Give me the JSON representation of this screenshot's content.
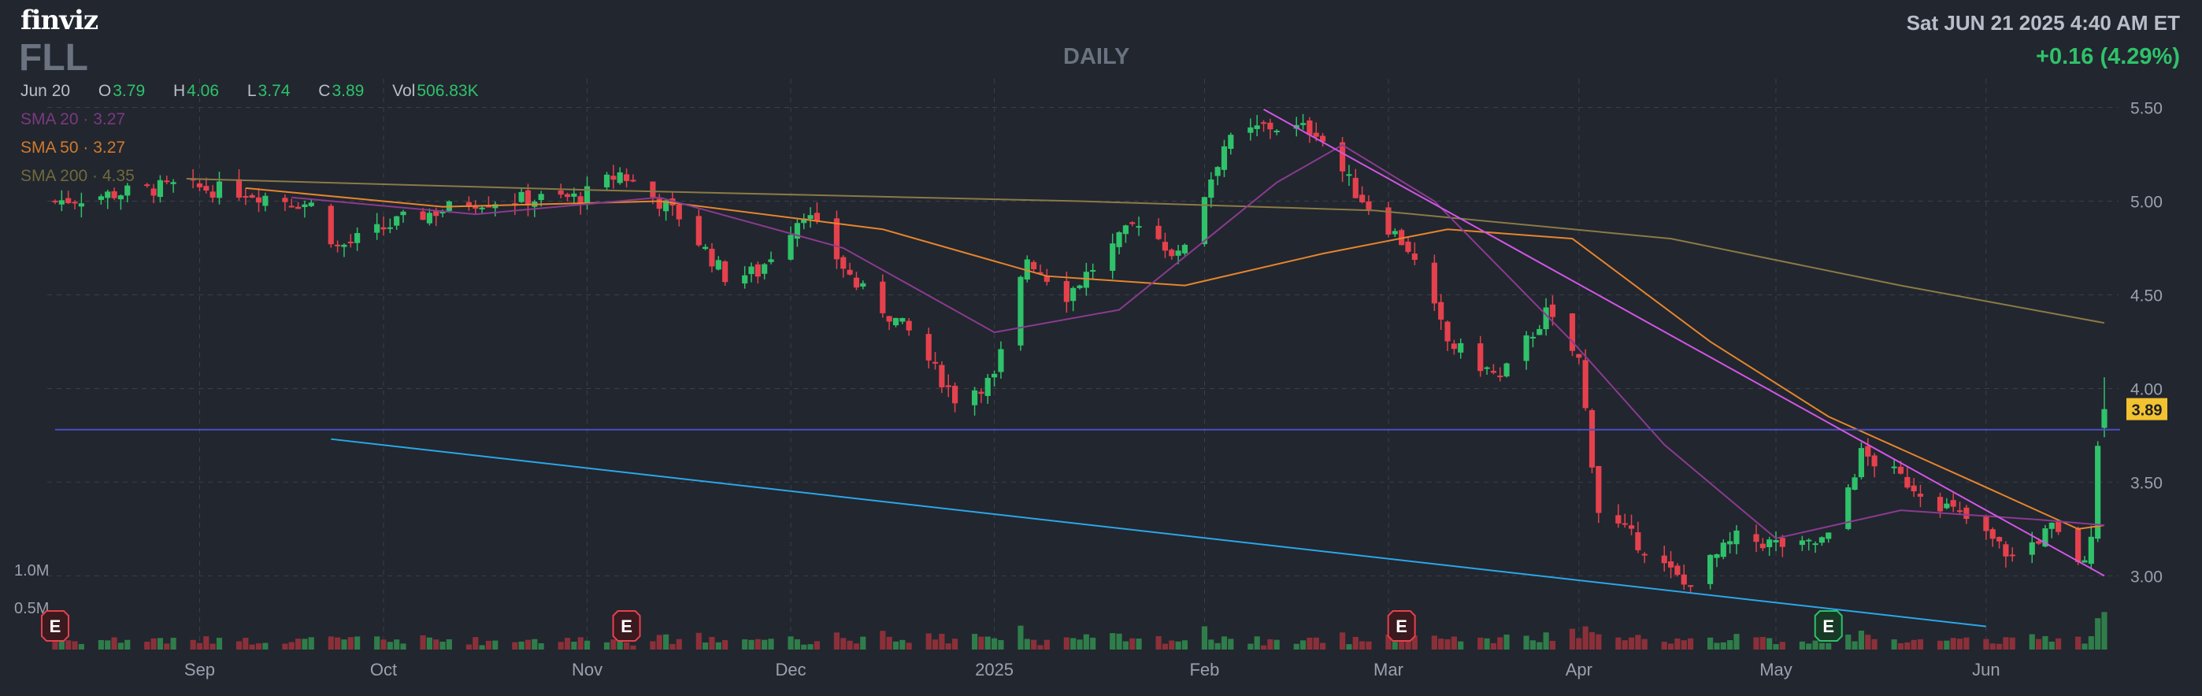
{
  "header": {
    "logo": "finviz",
    "ticker": "FLL",
    "period": "DAILY",
    "datetime": "Sat JUN 21 2025 4:40 AM ET",
    "change": "+0.16 (4.29%)"
  },
  "ohlc": {
    "date": "Jun 20",
    "o_label": "O",
    "o": "3.79",
    "h_label": "H",
    "h": "4.06",
    "l_label": "L",
    "l": "3.74",
    "c_label": "C",
    "c": "3.89",
    "vol_label": "Vol",
    "vol": "506.83K"
  },
  "sma": {
    "sma20": "SMA 20 · 3.27",
    "sma50": "SMA 50 · 3.27",
    "sma200": "SMA 200 · 4.35"
  },
  "colors": {
    "up": "#2fc26a",
    "down": "#e5414d",
    "up_vol": "#2f7d4a",
    "down_vol": "#8b3039",
    "sma20": "#8a3b8f",
    "sma50": "#e6852c",
    "sma200": "#8a7a45",
    "trend_top": "#d256e6",
    "trend_bottom": "#2aa7e8",
    "hline": "#4b4fbf",
    "last_price_bg": "#f2c230"
  },
  "chart_data": {
    "type": "candlestick",
    "ylim": [
      2.72,
      5.62
    ],
    "y_ticks": [
      3.0,
      3.5,
      4.0,
      4.5,
      5.0,
      5.5
    ],
    "y_tick_labels": [
      "3.00",
      "3.50",
      "4.00",
      "4.50",
      "5.00",
      "5.50"
    ],
    "volume_labels": [
      "1.0M",
      "0.5M"
    ],
    "x_labels": [
      {
        "label": "Sep",
        "date": "2024-09-03"
      },
      {
        "label": "Oct",
        "date": "2024-10-01"
      },
      {
        "label": "Nov",
        "date": "2024-11-01"
      },
      {
        "label": "Dec",
        "date": "2024-12-02"
      },
      {
        "label": "2025",
        "date": "2025-01-02"
      },
      {
        "label": "Feb",
        "date": "2025-02-03"
      },
      {
        "label": "Mar",
        "date": "2025-03-03"
      },
      {
        "label": "Apr",
        "date": "2025-04-01"
      },
      {
        "label": "May",
        "date": "2025-05-01"
      },
      {
        "label": "Jun",
        "date": "2025-06-02"
      }
    ],
    "last_price": "3.89",
    "horizontal_line": 3.78,
    "trendlines": [
      {
        "name": "upper",
        "points": [
          [
            "2025-02-12",
            5.49
          ],
          [
            "2025-06-20",
            3.0
          ]
        ]
      },
      {
        "name": "lower",
        "points": [
          [
            "2024-09-23",
            3.73
          ],
          [
            "2025-06-02",
            2.73
          ]
        ]
      }
    ],
    "earnings": [
      {
        "date": "2024-08-12",
        "label": "E"
      },
      {
        "date": "2024-11-07",
        "label": "E"
      },
      {
        "date": "2025-03-05",
        "label": "E"
      },
      {
        "date": "2025-05-09",
        "label": "E"
      }
    ],
    "anchors": [
      [
        "2024-08-12",
        5.0
      ],
      [
        "2024-08-30",
        5.08
      ],
      [
        "2024-09-10",
        5.05
      ],
      [
        "2024-09-20",
        4.98
      ],
      [
        "2024-09-24",
        4.75
      ],
      [
        "2024-10-04",
        4.9
      ],
      [
        "2024-10-15",
        5.0
      ],
      [
        "2024-10-31",
        5.02
      ],
      [
        "2024-11-06",
        5.15
      ],
      [
        "2024-11-15",
        4.92
      ],
      [
        "2024-11-22",
        4.6
      ],
      [
        "2024-11-27",
        4.62
      ],
      [
        "2024-12-04",
        4.95
      ],
      [
        "2024-12-12",
        4.55
      ],
      [
        "2024-12-20",
        4.3
      ],
      [
        "2024-12-27",
        3.95
      ],
      [
        "2025-01-02",
        4.05
      ],
      [
        "2025-01-07",
        4.7
      ],
      [
        "2025-01-13",
        4.5
      ],
      [
        "2025-01-24",
        4.9
      ],
      [
        "2025-01-30",
        4.7
      ],
      [
        "2025-02-06",
        5.3
      ],
      [
        "2025-02-12",
        5.4
      ],
      [
        "2025-02-20",
        5.38
      ],
      [
        "2025-02-26",
        5.05
      ],
      [
        "2025-03-06",
        4.75
      ],
      [
        "2025-03-12",
        4.25
      ],
      [
        "2025-03-20",
        4.05
      ],
      [
        "2025-03-27",
        4.4
      ],
      [
        "2025-04-01",
        4.15
      ],
      [
        "2025-04-04",
        3.35
      ],
      [
        "2025-04-11",
        3.15
      ],
      [
        "2025-04-17",
        2.95
      ],
      [
        "2025-04-25",
        3.2
      ],
      [
        "2025-05-05",
        3.15
      ],
      [
        "2025-05-09",
        3.2
      ],
      [
        "2025-05-14",
        3.65
      ],
      [
        "2025-05-21",
        3.5
      ],
      [
        "2025-05-30",
        3.3
      ],
      [
        "2025-06-06",
        3.1
      ],
      [
        "2025-06-12",
        3.25
      ],
      [
        "2025-06-17",
        3.05
      ],
      [
        "2025-06-18",
        3.25
      ],
      [
        "2025-06-19",
        3.72
      ],
      [
        "2025-06-20",
        3.89
      ]
    ],
    "sma20_path": [
      [
        "2024-09-17",
        5.02
      ],
      [
        "2024-10-15",
        4.93
      ],
      [
        "2024-11-12",
        5.02
      ],
      [
        "2024-12-10",
        4.75
      ],
      [
        "2025-01-02",
        4.3
      ],
      [
        "2025-01-21",
        4.42
      ],
      [
        "2025-02-14",
        5.1
      ],
      [
        "2025-02-24",
        5.3
      ],
      [
        "2025-03-10",
        5.0
      ],
      [
        "2025-03-31",
        4.25
      ],
      [
        "2025-04-14",
        3.7
      ],
      [
        "2025-05-01",
        3.2
      ],
      [
        "2025-05-20",
        3.35
      ],
      [
        "2025-06-10",
        3.3
      ],
      [
        "2025-06-20",
        3.27
      ]
    ],
    "sma50_path": [
      [
        "2024-09-10",
        5.07
      ],
      [
        "2024-10-10",
        4.97
      ],
      [
        "2024-11-12",
        5.0
      ],
      [
        "2024-12-16",
        4.85
      ],
      [
        "2025-01-10",
        4.6
      ],
      [
        "2025-01-31",
        4.55
      ],
      [
        "2025-02-21",
        4.72
      ],
      [
        "2025-03-12",
        4.85
      ],
      [
        "2025-03-31",
        4.8
      ],
      [
        "2025-04-21",
        4.25
      ],
      [
        "2025-05-09",
        3.85
      ],
      [
        "2025-05-30",
        3.52
      ],
      [
        "2025-06-16",
        3.25
      ],
      [
        "2025-06-20",
        3.27
      ]
    ],
    "sma200_path": [
      [
        "2024-09-01",
        5.12
      ],
      [
        "2024-11-01",
        5.06
      ],
      [
        "2025-01-15",
        5.0
      ],
      [
        "2025-03-01",
        4.95
      ],
      [
        "2025-04-15",
        4.8
      ],
      [
        "2025-05-20",
        4.55
      ],
      [
        "2025-06-20",
        4.35
      ]
    ]
  }
}
